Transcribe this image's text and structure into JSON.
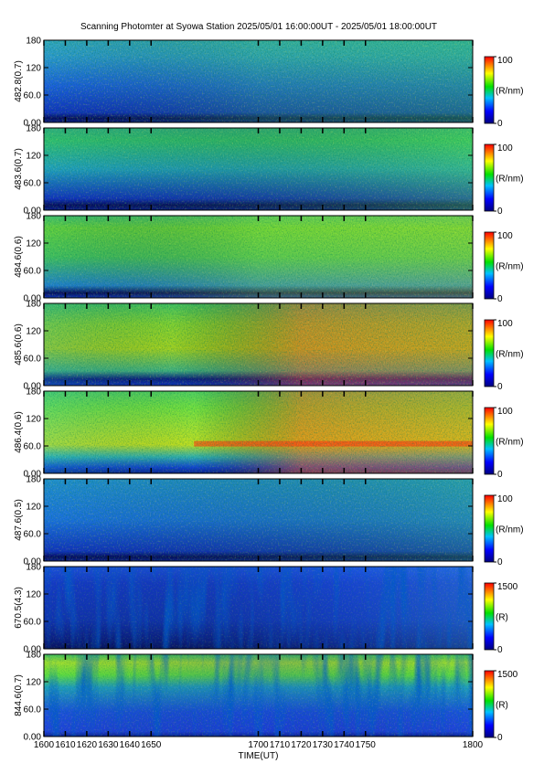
{
  "chart_data": [
    {
      "type": "heatmap",
      "title": "Scanning Photomter at Syowa Station 2025/05/01 16:00:00UT - 2025/05/01 18:00:00UT",
      "ylabel": "482.8(0.7)",
      "ylim": [
        0,
        180
      ],
      "yticks": [
        {
          "value": 0,
          "label": "0.00"
        },
        {
          "value": 60,
          "label": "60.0"
        },
        120,
        180
      ],
      "clim": [
        0,
        100
      ],
      "cticks": [
        0,
        100
      ],
      "clabel": "(R/nm)"
    },
    {
      "type": "heatmap",
      "ylabel": "483.6(0.7)",
      "ylim": [
        0,
        180
      ],
      "yticks": [
        {
          "value": 0,
          "label": "0.00"
        },
        {
          "value": 60,
          "label": "60.0"
        },
        120,
        180
      ],
      "clim": [
        0,
        100
      ],
      "cticks": [
        0,
        100
      ],
      "clabel": "(R/nm)"
    },
    {
      "type": "heatmap",
      "ylabel": "484.6(0.6)",
      "ylim": [
        0,
        180
      ],
      "yticks": [
        {
          "value": 0,
          "label": "0.00"
        },
        {
          "value": 60,
          "label": "60.0"
        },
        120,
        180
      ],
      "clim": [
        0,
        100
      ],
      "cticks": [
        0,
        100
      ],
      "clabel": "(R/nm)"
    },
    {
      "type": "heatmap",
      "ylabel": "485.6(0.6)",
      "ylim": [
        0,
        180
      ],
      "yticks": [
        {
          "value": 0,
          "label": "0.00"
        },
        {
          "value": 60,
          "label": "60.0"
        },
        120,
        180
      ],
      "clim": [
        0,
        100
      ],
      "cticks": [
        0,
        100
      ],
      "clabel": "(R/nm)"
    },
    {
      "type": "heatmap",
      "ylabel": "486.4(0.6)",
      "ylim": [
        0,
        180
      ],
      "yticks": [
        {
          "value": 0,
          "label": "0.00"
        },
        {
          "value": 60,
          "label": "60.0"
        },
        120,
        180
      ],
      "clim": [
        0,
        100
      ],
      "cticks": [
        0,
        100
      ],
      "clabel": "(R/nm)"
    },
    {
      "type": "heatmap",
      "ylabel": "487.6(0.5)",
      "ylim": [
        0,
        180
      ],
      "yticks": [
        {
          "value": 0,
          "label": "0.00"
        },
        {
          "value": 60,
          "label": "60.0"
        },
        120,
        180
      ],
      "clim": [
        0,
        100
      ],
      "cticks": [
        0,
        100
      ],
      "clabel": "(R/nm)"
    },
    {
      "type": "heatmap",
      "ylabel": "670.5(4.3)",
      "ylim": [
        0,
        180
      ],
      "yticks": [
        {
          "value": 0,
          "label": "0.00"
        },
        {
          "value": 60,
          "label": "60.0"
        },
        120,
        180
      ],
      "clim": [
        0,
        1500
      ],
      "cticks": [
        0,
        1500
      ],
      "clabel": "(R)"
    },
    {
      "type": "heatmap",
      "ylabel": "844.6(0.7)",
      "ylim": [
        0,
        180
      ],
      "yticks": [
        {
          "value": 0,
          "label": "0.00"
        },
        {
          "value": 60,
          "label": "60.0"
        },
        120,
        180
      ],
      "clim": [
        0,
        1500
      ],
      "cticks": [
        0,
        1500
      ],
      "clabel": "(R)",
      "xlabel": "TIME(UT)",
      "xlim": [
        1600,
        1800
      ],
      "xticks": [
        1600,
        1610,
        1620,
        1630,
        1640,
        1650,
        1700,
        1710,
        1720,
        1730,
        1740,
        1750,
        1800
      ]
    }
  ]
}
